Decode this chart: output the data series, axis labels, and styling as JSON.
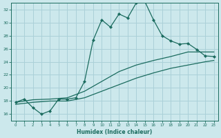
{
  "xlabel": "Humidex (Indice chaleur)",
  "bg_color": "#cce8ec",
  "grid_color": "#aad0d8",
  "line_color": "#1a6b5e",
  "xlim": [
    -0.5,
    23.5
  ],
  "ylim": [
    15,
    33
  ],
  "yticks": [
    16,
    18,
    20,
    22,
    24,
    26,
    28,
    30,
    32
  ],
  "xticks": [
    0,
    1,
    2,
    3,
    4,
    5,
    6,
    7,
    8,
    9,
    10,
    11,
    12,
    13,
    14,
    15,
    16,
    17,
    18,
    19,
    20,
    21,
    22,
    23
  ],
  "line1_x": [
    0,
    1,
    2,
    3,
    4,
    5,
    6,
    7,
    8,
    9,
    10,
    11,
    12,
    13,
    14,
    15,
    16,
    17,
    18,
    19,
    20,
    21,
    22,
    23
  ],
  "line1_y": [
    17.8,
    18.3,
    17.0,
    16.0,
    16.5,
    18.3,
    18.3,
    18.5,
    21.0,
    27.3,
    30.4,
    29.3,
    31.3,
    30.7,
    33.0,
    33.2,
    30.4,
    28.0,
    27.2,
    26.7,
    26.8,
    25.9,
    24.9,
    24.8
  ],
  "line2_x": [
    0,
    2,
    4,
    6,
    8,
    10,
    12,
    14,
    16,
    18,
    20,
    22,
    23
  ],
  "line2_y": [
    17.8,
    18.2,
    18.3,
    18.5,
    19.5,
    21.0,
    22.5,
    23.5,
    24.2,
    24.8,
    25.5,
    25.5,
    25.5
  ],
  "line3_x": [
    0,
    2,
    4,
    6,
    8,
    10,
    12,
    14,
    16,
    18,
    20,
    22,
    23
  ],
  "line3_y": [
    17.5,
    17.8,
    18.0,
    18.0,
    18.5,
    19.5,
    20.5,
    21.5,
    22.3,
    23.0,
    23.5,
    24.0,
    24.2
  ]
}
